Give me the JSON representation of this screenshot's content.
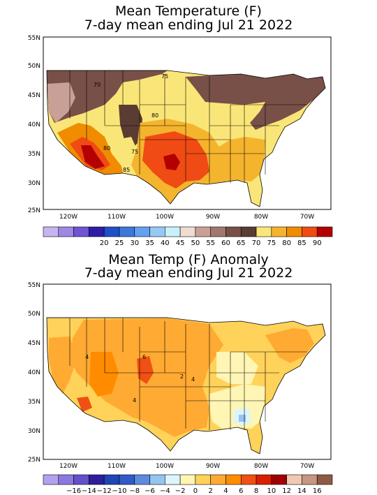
{
  "panels": [
    {
      "title_line1": "Mean Temperature (F)",
      "title_line2": "7-day mean ending Jul 21 2022",
      "lat_ticks": [
        "55N",
        "50N",
        "45N",
        "40N",
        "35N",
        "30N",
        "25N"
      ],
      "lon_ticks": [
        "120W",
        "110W",
        "100W",
        "90W",
        "80W",
        "70W"
      ],
      "colorbar": {
        "labels": [
          "20",
          "25",
          "30",
          "35",
          "40",
          "45",
          "50",
          "55",
          "60",
          "65",
          "70",
          "75",
          "80",
          "85",
          "90"
        ],
        "colors": [
          "#c8b4f0",
          "#9f87e6",
          "#6e55d2",
          "#2d1ea5",
          "#1e50c8",
          "#3c78dc",
          "#64a0f0",
          "#96c8f5",
          "#c8f0fa",
          "#f0dcd2",
          "#c8a096",
          "#a07870",
          "#785048",
          "#5a3c32",
          "#fae678",
          "#f5b42d",
          "#f08c00",
          "#f04b14",
          "#b40000"
        ]
      },
      "contour_labels": [
        "70",
        "75",
        "80",
        "80",
        "75",
        "85"
      ]
    },
    {
      "title_line1": "Mean Temp (F) Anomaly",
      "title_line2": "7-day mean ending Jul 21 2022",
      "lat_ticks": [
        "55N",
        "50N",
        "45N",
        "40N",
        "35N",
        "30N",
        "25N"
      ],
      "lon_ticks": [
        "120W",
        "110W",
        "100W",
        "90W",
        "80W",
        "70W"
      ],
      "colorbar": {
        "labels": [
          "−16",
          "−14",
          "−12",
          "−10",
          "−8",
          "−6",
          "−4",
          "−2",
          "0",
          "2",
          "4",
          "6",
          "8",
          "10",
          "12",
          "14",
          "16"
        ],
        "colors": [
          "#b4a0f0",
          "#8c78e1",
          "#6450c8",
          "#2d1e9b",
          "#1e46b4",
          "#325ac8",
          "#5a8cdc",
          "#96c3f0",
          "#dcf5fa",
          "#fff5b4",
          "#ffd25a",
          "#ffaa32",
          "#ff8c00",
          "#f05014",
          "#dc1e00",
          "#a00000",
          "#f0c8b4",
          "#c89682",
          "#8c5a46"
        ]
      },
      "contour_labels": [
        "4",
        "6",
        "2",
        "4",
        "4"
      ]
    }
  ]
}
